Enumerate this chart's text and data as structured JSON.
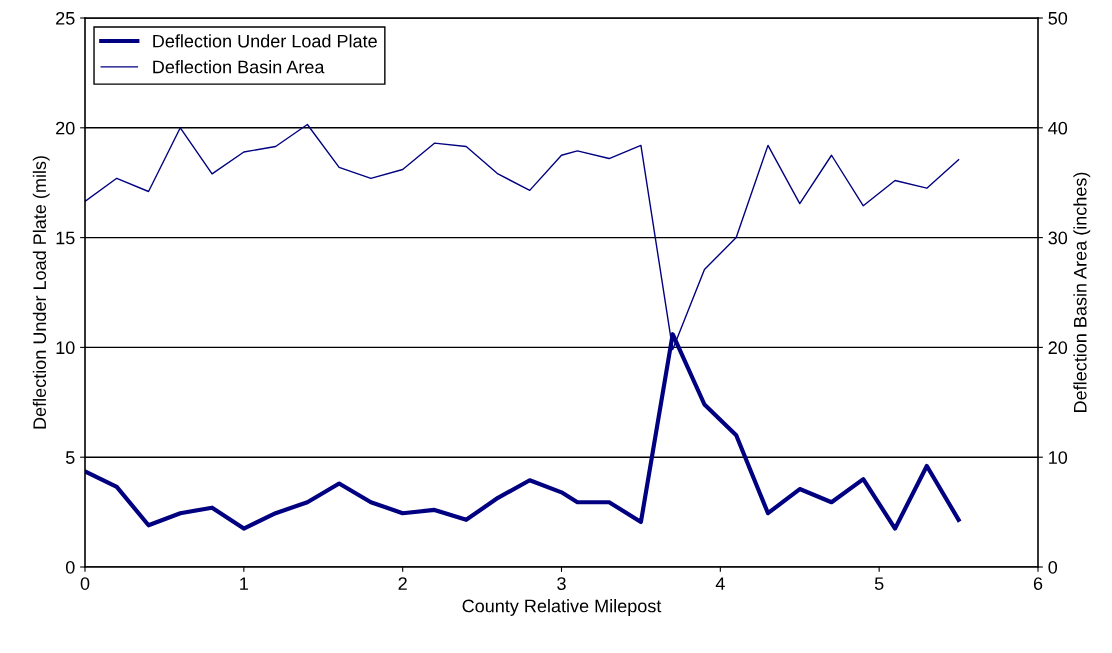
{
  "chart_data": {
    "type": "line",
    "xlabel": "County Relative Milepost",
    "ylabel": "Deflection Under Load Plate (mils)",
    "y2label": "Deflection Basin Area (inches)",
    "x": [
      0,
      0.2,
      0.4,
      0.6,
      0.8,
      1.0,
      1.2,
      1.4,
      1.6,
      1.8,
      2.0,
      2.2,
      2.4,
      2.6,
      2.8,
      3.0,
      3.1,
      3.3,
      3.5,
      3.7,
      3.9,
      4.1,
      4.3,
      4.5,
      4.7,
      4.9,
      5.1,
      5.3,
      5.5
    ],
    "series": [
      {
        "name": "Deflection Under Load Plate",
        "color": "#000080",
        "values": [
          4.35,
          3.65,
          1.9,
          2.45,
          2.7,
          1.75,
          2.45,
          2.95,
          3.8,
          2.95,
          2.45,
          2.6,
          2.15,
          3.15,
          3.95,
          3.4,
          2.95,
          2.95,
          2.05,
          10.6,
          7.4,
          6.0,
          2.45,
          3.55,
          2.95,
          4.0,
          1.75,
          4.6,
          2.15
        ]
      },
      {
        "name": "Deflection Basin Area",
        "color": "#000080",
        "axis": "y2",
        "values": [
          33.3,
          35.4,
          34.2,
          40.0,
          35.8,
          37.8,
          38.3,
          40.3,
          36.4,
          35.4,
          36.2,
          38.6,
          38.3,
          35.8,
          34.3,
          37.5,
          37.9,
          37.2,
          38.4,
          19.8,
          27.1,
          30.0,
          38.4,
          33.1,
          37.5,
          32.9,
          35.2,
          34.5,
          37.1
        ]
      }
    ],
    "xlim": [
      0,
      6
    ],
    "xticks": [
      0,
      1,
      2,
      3,
      4,
      5,
      6
    ],
    "ylim": [
      0,
      25
    ],
    "yticks": [
      0,
      5,
      10,
      15,
      20,
      25
    ],
    "y2lim": [
      0,
      50
    ],
    "y2ticks": [
      0,
      10,
      20,
      30,
      40,
      50
    ],
    "grid": "y",
    "legend": "top left",
    "marker": "none",
    "line_style": "solid"
  }
}
